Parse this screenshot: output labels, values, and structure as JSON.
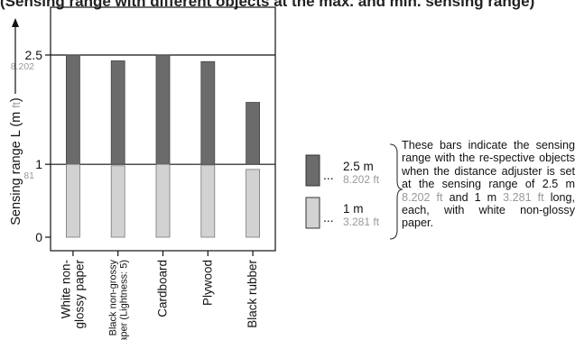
{
  "page_heading": "(Sensing range with different objects at the max. and min. sensing range)",
  "chart_data": {
    "type": "bar",
    "ylabel_parts": {
      "prefix": "Sensing range L (m ",
      "unit": "ft",
      "suffix": ")"
    },
    "ylim": [
      0,
      2.8
    ],
    "yticks": [
      {
        "value": 0,
        "label": "0",
        "sub": ""
      },
      {
        "value": 1,
        "label": "1",
        "sub": "3.281"
      },
      {
        "value": 2.5,
        "label": "2.5",
        "sub": "8.202"
      }
    ],
    "categories": [
      [
        "White non-",
        "glossy paper"
      ],
      [
        "Black non-grossy",
        "paper (Lightness: 5)"
      ],
      [
        "Cardboard"
      ],
      [
        "Plywood"
      ],
      [
        "Black rubber"
      ]
    ],
    "series": [
      {
        "setting": "max",
        "color": "#6b6b6b",
        "values": [
          2.5,
          2.42,
          2.5,
          2.41,
          1.85
        ]
      },
      {
        "setting": "min",
        "color": "#d2d2d2",
        "values": [
          1.0,
          0.98,
          1.0,
          0.99,
          0.93
        ]
      }
    ],
    "grid": "horizontal at 1 and 2.5",
    "legend_position": "right"
  },
  "legend": {
    "items": [
      {
        "dots": "...",
        "primary": "2.5 m",
        "secondary": "8.202 ft",
        "color": "#6b6b6b"
      },
      {
        "dots": "...",
        "primary": "1 m",
        "secondary": "3.281 ft",
        "color": "#d2d2d2"
      }
    ],
    "note": {
      "part1": "These bars indicate the sensing range with the re-spective objects when the distance adjuster is set at the sensing range of 2.5 m ",
      "gray1": "8.202 ft",
      "part2": " and 1 m ",
      "gray2": "3.281 ft",
      "part3": " long, each, with white non-glossy paper."
    }
  }
}
